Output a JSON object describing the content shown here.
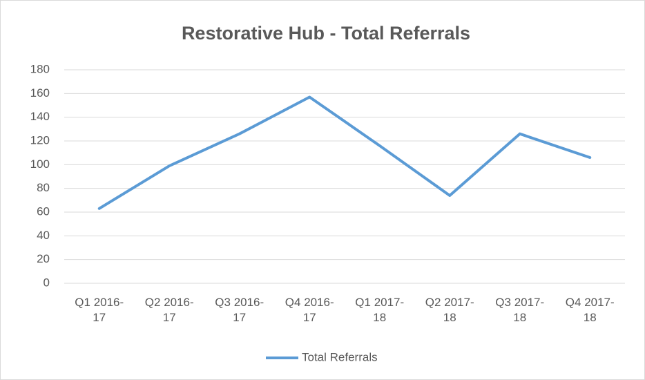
{
  "chart_data": {
    "type": "line",
    "title": "Restorative Hub - Total Referrals",
    "categories": [
      "Q1 2016-17",
      "Q2 2016-17",
      "Q3 2016-17",
      "Q4 2016-17",
      "Q1 2017-18",
      "Q2 2017-18",
      "Q3 2017-18",
      "Q4 2017-18"
    ],
    "series": [
      {
        "name": "Total Referrals",
        "color": "#5b9bd5",
        "values": [
          63,
          99,
          126,
          157,
          116,
          74,
          126,
          106
        ]
      }
    ],
    "ylim": [
      0,
      180
    ],
    "yticks": [
      0,
      20,
      40,
      60,
      80,
      100,
      120,
      140,
      160,
      180
    ],
    "grid": true,
    "legend": "bottom"
  }
}
